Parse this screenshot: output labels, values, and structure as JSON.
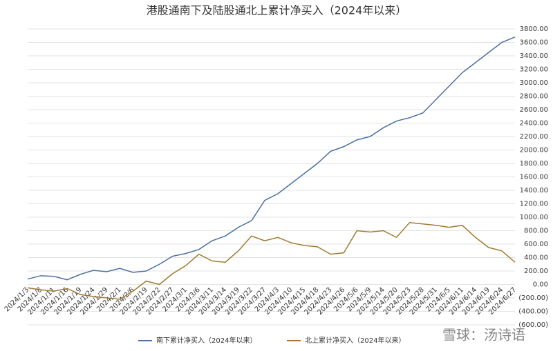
{
  "chart_data": {
    "type": "line",
    "title": "港股通南下及陆股通北上累计净买入（2024年以来）",
    "watermark": "雪球：汤诗语",
    "categories": [
      "2024/1/3",
      "2024/1/8",
      "2024/1/11",
      "2024/1/16",
      "2024/1/19",
      "2024/1/24",
      "2024/1/29",
      "2024/2/1",
      "2024/2/6",
      "2024/2/19",
      "2024/2/22",
      "2024/2/27",
      "2024/3/1",
      "2024/3/6",
      "2024/3/11",
      "2024/3/14",
      "2024/3/19",
      "2024/3/22",
      "2024/3/27",
      "2024/4/3",
      "2024/4/10",
      "2024/4/15",
      "2024/4/18",
      "2024/4/23",
      "2024/4/26",
      "2024/5/6",
      "2024/5/9",
      "2024/5/14",
      "2024/5/20",
      "2024/5/23",
      "2024/5/28",
      "2024/5/31",
      "2024/6/5",
      "2024/6/11",
      "2024/6/14",
      "2024/6/19",
      "2024/6/24",
      "2024/6/27"
    ],
    "series": [
      {
        "name": "南下累计净买入（2024年以来）",
        "color": "#4a6fa5",
        "values": [
          80,
          130,
          120,
          70,
          150,
          210,
          190,
          240,
          180,
          200,
          300,
          420,
          460,
          520,
          650,
          720,
          850,
          950,
          1250,
          1350,
          1500,
          1650,
          1800,
          1980,
          2050,
          2150,
          2200,
          2330,
          2430,
          2480,
          2550,
          2750,
          2950,
          3150,
          3300,
          3450,
          3600,
          3680
        ]
      },
      {
        "name": "北上累计净买入（2024年以来）",
        "color": "#a07a2f",
        "values": [
          -50,
          -80,
          -100,
          -60,
          -150,
          -180,
          -200,
          -220,
          -100,
          50,
          0,
          160,
          280,
          450,
          350,
          330,
          500,
          720,
          650,
          700,
          620,
          580,
          560,
          450,
          470,
          800,
          780,
          800,
          700,
          920,
          900,
          880,
          850,
          880,
          700,
          550,
          500,
          330
        ]
      }
    ],
    "ylim": [
      -600,
      3800
    ],
    "yticks": [
      {
        "value": -600,
        "label": "(600.00)"
      },
      {
        "value": -400,
        "label": "(400.00)"
      },
      {
        "value": -200,
        "label": "(200.00)"
      },
      {
        "value": 0,
        "label": "0.00"
      },
      {
        "value": 200,
        "label": "200.00"
      },
      {
        "value": 400,
        "label": "400.00"
      },
      {
        "value": 600,
        "label": "600.00"
      },
      {
        "value": 800,
        "label": "800.00"
      },
      {
        "value": 1000,
        "label": "1000.00"
      },
      {
        "value": 1200,
        "label": "1200.00"
      },
      {
        "value": 1400,
        "label": "1400.00"
      },
      {
        "value": 1600,
        "label": "1600.00"
      },
      {
        "value": 1800,
        "label": "1800.00"
      },
      {
        "value": 2000,
        "label": "2000.00"
      },
      {
        "value": 2200,
        "label": "2200.00"
      },
      {
        "value": 2400,
        "label": "2400.00"
      },
      {
        "value": 2600,
        "label": "2600.00"
      },
      {
        "value": 2800,
        "label": "2800.00"
      },
      {
        "value": 3000,
        "label": "3000.00"
      },
      {
        "value": 3200,
        "label": "3200.00"
      },
      {
        "value": 3400,
        "label": "3400.00"
      },
      {
        "value": 3600,
        "label": "3600.00"
      },
      {
        "value": 3800,
        "label": "3800.00"
      }
    ],
    "grid": true
  }
}
